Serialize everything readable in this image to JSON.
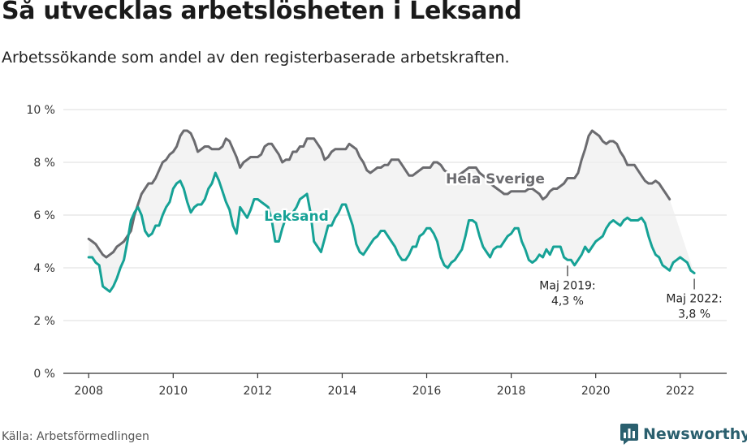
{
  "title": "Så utvecklas arbetslösheten i Leksand",
  "subtitle": "Arbetssökande som andel av den registerbaserade arbetskraften.",
  "source": "Källa: Arbetsförmedlingen",
  "brand": {
    "name": "Newsworthy",
    "icon": "newsworthy-logo-icon"
  },
  "colors": {
    "sweden": "#6b6b6f",
    "leksand": "#16a296",
    "band": "#efefef",
    "grid": "#dcdcdc",
    "axis": "#333333"
  },
  "chart_data": {
    "type": "line",
    "title": "Så utvecklas arbetslösheten i Leksand",
    "xlabel": "",
    "ylabel": "",
    "xlim": [
      2007.4,
      2023.1
    ],
    "ylim": [
      0,
      10
    ],
    "x_ticks": [
      2008,
      2010,
      2012,
      2014,
      2016,
      2018,
      2020,
      2022
    ],
    "x_tick_labels": [
      "2008",
      "2010",
      "2012",
      "2014",
      "2016",
      "2018",
      "2020",
      "2022"
    ],
    "y_ticks": [
      0,
      2,
      4,
      6,
      8,
      10
    ],
    "y_tick_labels": [
      "0 %",
      "2 %",
      "4 %",
      "6 %",
      "8 %",
      "10 %"
    ],
    "grid": true,
    "x_start": 2008.0,
    "x_step": 0.08333,
    "series": [
      {
        "name": "Hela Sverige",
        "label": "Hela Sverige",
        "values": [
          5.1,
          5.0,
          4.9,
          4.7,
          4.5,
          4.4,
          4.5,
          4.6,
          4.8,
          4.9,
          5.0,
          5.2,
          5.4,
          6.0,
          6.4,
          6.8,
          7.0,
          7.2,
          7.2,
          7.4,
          7.7,
          8.0,
          8.1,
          8.3,
          8.4,
          8.6,
          9.0,
          9.2,
          9.2,
          9.1,
          8.8,
          8.4,
          8.5,
          8.6,
          8.6,
          8.5,
          8.5,
          8.5,
          8.6,
          8.9,
          8.8,
          8.5,
          8.2,
          7.8,
          8.0,
          8.1,
          8.2,
          8.2,
          8.2,
          8.3,
          8.6,
          8.7,
          8.7,
          8.5,
          8.3,
          8.0,
          8.1,
          8.1,
          8.4,
          8.4,
          8.6,
          8.6,
          8.9,
          8.9,
          8.9,
          8.7,
          8.5,
          8.1,
          8.2,
          8.4,
          8.5,
          8.5,
          8.5,
          8.5,
          8.7,
          8.6,
          8.5,
          8.2,
          8.0,
          7.7,
          7.6,
          7.7,
          7.8,
          7.8,
          7.9,
          7.9,
          8.1,
          8.1,
          8.1,
          7.9,
          7.7,
          7.5,
          7.5,
          7.6,
          7.7,
          7.8,
          7.8,
          7.8,
          8.0,
          8.0,
          7.9,
          7.7,
          7.6,
          7.5,
          7.5,
          7.5,
          7.6,
          7.7,
          7.8,
          7.8,
          7.8,
          7.6,
          7.5,
          7.4,
          7.2,
          7.1,
          7.0,
          6.9,
          6.8,
          6.8,
          6.9,
          6.9,
          6.9,
          6.9,
          6.9,
          7.0,
          7.0,
          6.9,
          6.8,
          6.6,
          6.7,
          6.9,
          7.0,
          7.0,
          7.1,
          7.2,
          7.4,
          7.4,
          7.4,
          7.6,
          8.1,
          8.5,
          9.0,
          9.2,
          9.1,
          9.0,
          8.8,
          8.7,
          8.8,
          8.8,
          8.7,
          8.4,
          8.2,
          7.9,
          7.9,
          7.9,
          7.7,
          7.5,
          7.3,
          7.2,
          7.2,
          7.3,
          7.2,
          7.0,
          6.8,
          6.6
        ]
      },
      {
        "name": "Leksand",
        "label": "Leksand",
        "values": [
          4.4,
          4.4,
          4.2,
          4.1,
          3.3,
          3.2,
          3.1,
          3.3,
          3.6,
          4.0,
          4.3,
          5.0,
          5.8,
          6.1,
          6.3,
          6.0,
          5.4,
          5.2,
          5.3,
          5.6,
          5.6,
          6.0,
          6.3,
          6.5,
          7.0,
          7.2,
          7.3,
          7.0,
          6.5,
          6.1,
          6.3,
          6.4,
          6.4,
          6.6,
          7.0,
          7.2,
          7.6,
          7.3,
          6.9,
          6.5,
          6.2,
          5.6,
          5.3,
          6.3,
          6.1,
          5.9,
          6.2,
          6.6,
          6.6,
          6.5,
          6.4,
          6.3,
          5.8,
          5.0,
          5.0,
          5.5,
          5.9,
          6.0,
          6.1,
          6.3,
          6.6,
          6.7,
          6.8,
          6.1,
          5.0,
          4.8,
          4.6,
          5.1,
          5.6,
          5.6,
          5.9,
          6.1,
          6.4,
          6.4,
          6.0,
          5.6,
          4.9,
          4.6,
          4.5,
          4.7,
          4.9,
          5.1,
          5.2,
          5.4,
          5.4,
          5.2,
          5.0,
          4.8,
          4.5,
          4.3,
          4.3,
          4.5,
          4.8,
          4.8,
          5.2,
          5.3,
          5.5,
          5.5,
          5.3,
          5.0,
          4.4,
          4.1,
          4.0,
          4.2,
          4.3,
          4.5,
          4.7,
          5.2,
          5.8,
          5.8,
          5.7,
          5.2,
          4.8,
          4.6,
          4.4,
          4.7,
          4.8,
          4.8,
          5.0,
          5.2,
          5.3,
          5.5,
          5.5,
          5.0,
          4.7,
          4.3,
          4.2,
          4.3,
          4.5,
          4.4,
          4.7,
          4.5,
          4.8,
          4.8,
          4.8,
          4.4,
          4.3,
          4.3,
          4.1,
          4.3,
          4.5,
          4.8,
          4.6,
          4.8,
          5.0,
          5.1,
          5.2,
          5.5,
          5.7,
          5.8,
          5.7,
          5.6,
          5.8,
          5.9,
          5.8,
          5.8,
          5.8,
          5.9,
          5.7,
          5.2,
          4.8,
          4.5,
          4.4,
          4.1,
          4.0,
          3.9,
          4.2,
          4.3,
          4.4,
          4.3,
          4.2,
          3.9,
          3.8
        ]
      }
    ],
    "annotations": [
      {
        "x": 2019.333,
        "y": 4.3,
        "text_line1": "Maj 2019:",
        "text_line2": "4,3 %"
      },
      {
        "x": 2022.333,
        "y": 3.8,
        "text_line1": "Maj 2022:",
        "text_line2": "3,8 %"
      }
    ]
  }
}
